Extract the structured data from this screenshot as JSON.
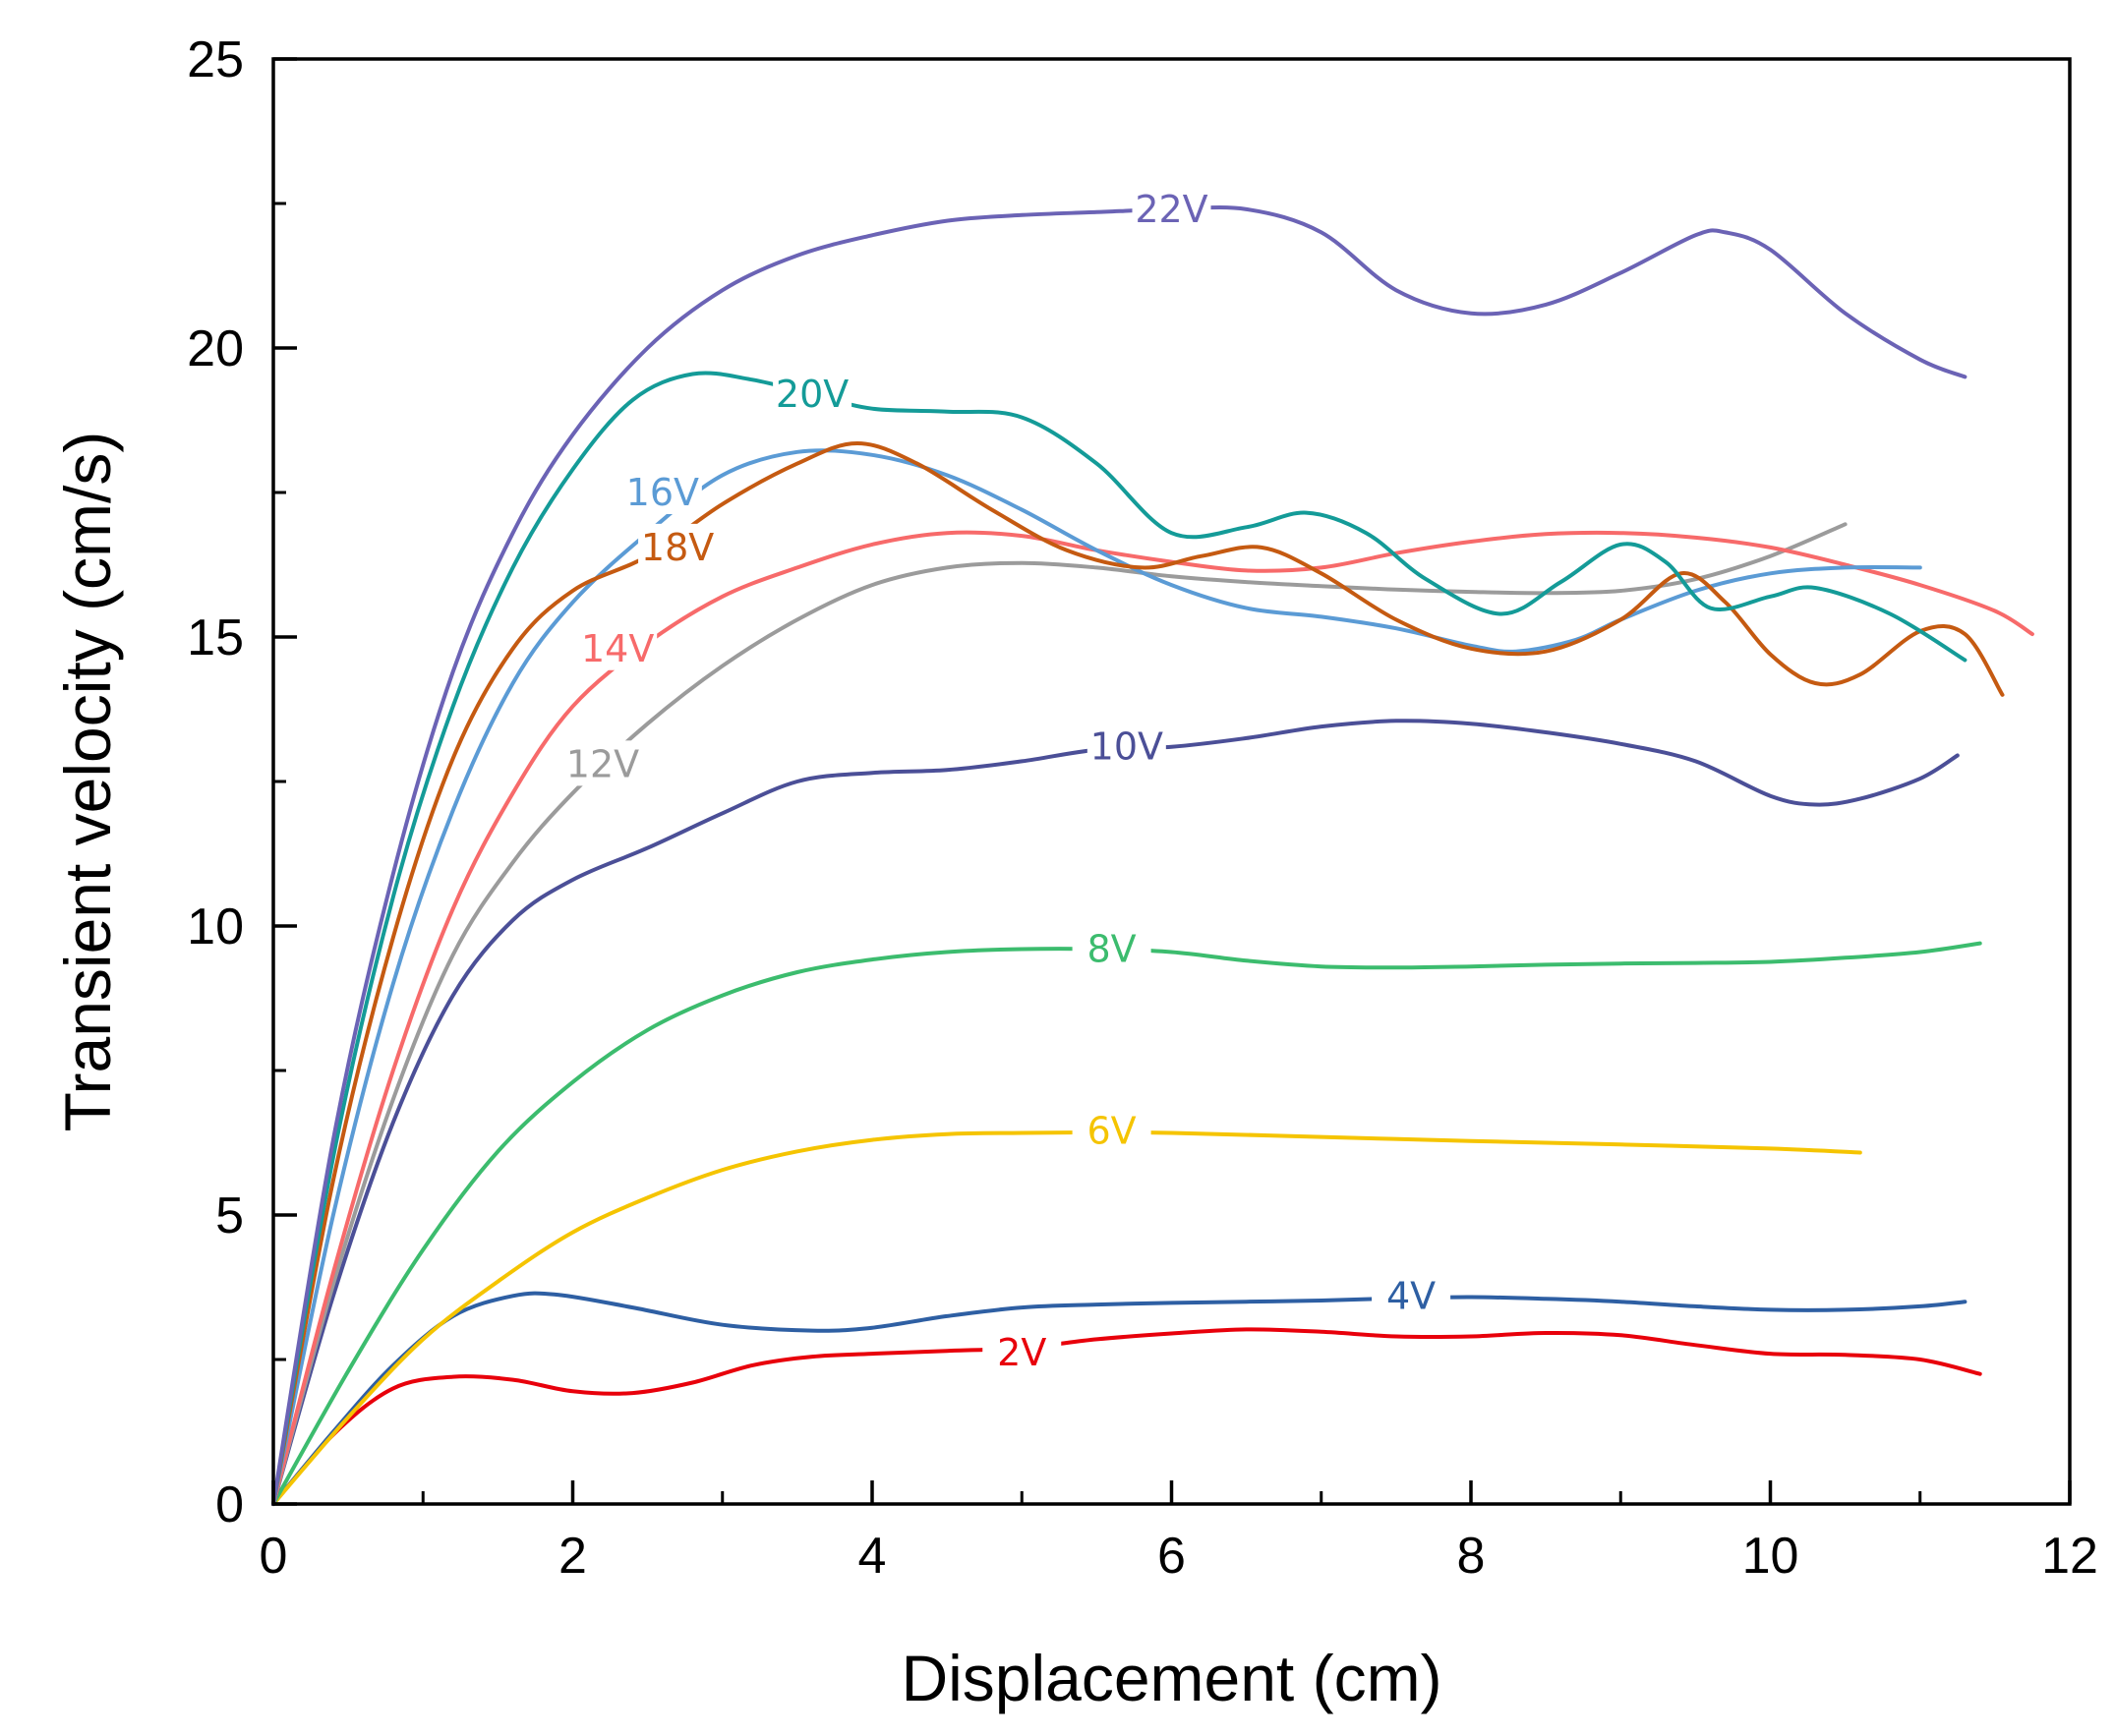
{
  "chart_data": {
    "type": "line",
    "title": "",
    "xlabel": "Displacement (cm)",
    "ylabel": "Transient velocity (cm/s)",
    "xlim": [
      0,
      12
    ],
    "ylim": [
      0,
      25
    ],
    "x_ticks": [
      "0",
      "2",
      "4",
      "6",
      "8",
      "10",
      "12"
    ],
    "y_ticks": [
      "0",
      "5",
      "10",
      "15",
      "20",
      "25"
    ],
    "grid": false,
    "series": [
      {
        "name": "2V",
        "color": "#e8000b",
        "label_at": [
          5.0,
          2.62
        ],
        "points": [
          [
            0,
            0
          ],
          [
            0.4,
            1.2
          ],
          [
            0.8,
            2.0
          ],
          [
            1.2,
            2.2
          ],
          [
            1.6,
            2.15
          ],
          [
            2.0,
            1.95
          ],
          [
            2.4,
            1.92
          ],
          [
            2.8,
            2.1
          ],
          [
            3.2,
            2.4
          ],
          [
            3.6,
            2.55
          ],
          [
            4.0,
            2.6
          ],
          [
            4.5,
            2.65
          ],
          [
            5.0,
            2.7
          ],
          [
            5.5,
            2.85
          ],
          [
            6.0,
            2.95
          ],
          [
            6.5,
            3.02
          ],
          [
            7.0,
            2.98
          ],
          [
            7.5,
            2.9
          ],
          [
            8.0,
            2.9
          ],
          [
            8.5,
            2.96
          ],
          [
            9.0,
            2.92
          ],
          [
            9.5,
            2.75
          ],
          [
            10.0,
            2.6
          ],
          [
            10.5,
            2.58
          ],
          [
            11.0,
            2.5
          ],
          [
            11.4,
            2.25
          ]
        ]
      },
      {
        "name": "4V",
        "color": "#2e5fa3",
        "label_at": [
          7.6,
          3.6
        ],
        "points": [
          [
            0,
            0
          ],
          [
            0.4,
            1.25
          ],
          [
            0.8,
            2.4
          ],
          [
            1.2,
            3.25
          ],
          [
            1.6,
            3.6
          ],
          [
            1.9,
            3.62
          ],
          [
            2.4,
            3.4
          ],
          [
            3.0,
            3.1
          ],
          [
            3.6,
            3.0
          ],
          [
            4.0,
            3.05
          ],
          [
            4.5,
            3.25
          ],
          [
            5.0,
            3.4
          ],
          [
            5.5,
            3.45
          ],
          [
            6.0,
            3.48
          ],
          [
            6.5,
            3.5
          ],
          [
            7.0,
            3.52
          ],
          [
            7.5,
            3.56
          ],
          [
            8.0,
            3.58
          ],
          [
            8.5,
            3.55
          ],
          [
            9.0,
            3.5
          ],
          [
            9.5,
            3.42
          ],
          [
            10.0,
            3.36
          ],
          [
            10.5,
            3.36
          ],
          [
            11.0,
            3.42
          ],
          [
            11.3,
            3.5
          ]
        ]
      },
      {
        "name": "6V",
        "color": "#f5c400",
        "label_at": [
          5.6,
          6.45
        ],
        "points": [
          [
            0,
            0
          ],
          [
            0.5,
            1.5
          ],
          [
            1.0,
            2.85
          ],
          [
            1.5,
            3.85
          ],
          [
            2.0,
            4.7
          ],
          [
            2.5,
            5.3
          ],
          [
            3.0,
            5.78
          ],
          [
            3.5,
            6.1
          ],
          [
            4.0,
            6.3
          ],
          [
            4.5,
            6.4
          ],
          [
            5.0,
            6.42
          ],
          [
            5.5,
            6.43
          ],
          [
            6.0,
            6.42
          ],
          [
            7.0,
            6.35
          ],
          [
            8.0,
            6.28
          ],
          [
            9.0,
            6.22
          ],
          [
            10.0,
            6.15
          ],
          [
            10.6,
            6.08
          ]
        ]
      },
      {
        "name": "8V",
        "color": "#3cbc6e",
        "label_at": [
          5.6,
          9.6
        ],
        "points": [
          [
            0,
            0
          ],
          [
            0.5,
            2.3
          ],
          [
            1.0,
            4.4
          ],
          [
            1.5,
            6.1
          ],
          [
            2.0,
            7.3
          ],
          [
            2.5,
            8.2
          ],
          [
            3.0,
            8.8
          ],
          [
            3.5,
            9.2
          ],
          [
            4.0,
            9.42
          ],
          [
            4.5,
            9.55
          ],
          [
            5.0,
            9.6
          ],
          [
            5.5,
            9.6
          ],
          [
            6.0,
            9.55
          ],
          [
            6.5,
            9.4
          ],
          [
            7.0,
            9.3
          ],
          [
            7.5,
            9.28
          ],
          [
            8.0,
            9.3
          ],
          [
            8.5,
            9.33
          ],
          [
            9.0,
            9.35
          ],
          [
            9.5,
            9.36
          ],
          [
            10.0,
            9.38
          ],
          [
            10.5,
            9.45
          ],
          [
            11.0,
            9.55
          ],
          [
            11.4,
            9.7
          ]
        ]
      },
      {
        "name": "10V",
        "color": "#4b4f97",
        "label_at": [
          5.7,
          13.1
        ],
        "points": [
          [
            0,
            0
          ],
          [
            0.4,
            3.6
          ],
          [
            0.8,
            6.6
          ],
          [
            1.2,
            8.8
          ],
          [
            1.6,
            10.1
          ],
          [
            2.0,
            10.8
          ],
          [
            2.5,
            11.35
          ],
          [
            3.0,
            11.95
          ],
          [
            3.5,
            12.5
          ],
          [
            4.0,
            12.65
          ],
          [
            4.5,
            12.7
          ],
          [
            5.0,
            12.85
          ],
          [
            5.5,
            13.05
          ],
          [
            6.0,
            13.1
          ],
          [
            6.5,
            13.25
          ],
          [
            7.0,
            13.45
          ],
          [
            7.5,
            13.55
          ],
          [
            8.0,
            13.5
          ],
          [
            8.5,
            13.35
          ],
          [
            9.0,
            13.15
          ],
          [
            9.5,
            12.85
          ],
          [
            10.0,
            12.25
          ],
          [
            10.3,
            12.1
          ],
          [
            10.6,
            12.2
          ],
          [
            11.0,
            12.55
          ],
          [
            11.25,
            12.95
          ]
        ]
      },
      {
        "name": "12V",
        "color": "#9b9b9b",
        "label_at": [
          2.2,
          12.8
        ],
        "points": [
          [
            0,
            0
          ],
          [
            0.4,
            3.8
          ],
          [
            0.8,
            7.0
          ],
          [
            1.2,
            9.5
          ],
          [
            1.6,
            11.1
          ],
          [
            2.0,
            12.3
          ],
          [
            2.5,
            13.5
          ],
          [
            3.0,
            14.5
          ],
          [
            3.5,
            15.3
          ],
          [
            4.0,
            15.9
          ],
          [
            4.5,
            16.2
          ],
          [
            5.0,
            16.28
          ],
          [
            5.5,
            16.2
          ],
          [
            6.0,
            16.05
          ],
          [
            6.5,
            15.95
          ],
          [
            7.0,
            15.88
          ],
          [
            7.5,
            15.82
          ],
          [
            8.0,
            15.78
          ],
          [
            8.5,
            15.76
          ],
          [
            9.0,
            15.8
          ],
          [
            9.5,
            16.0
          ],
          [
            10.0,
            16.4
          ],
          [
            10.5,
            16.95
          ]
        ]
      },
      {
        "name": "14V",
        "color": "#f76a6a",
        "label_at": [
          2.3,
          14.8
        ],
        "points": [
          [
            0,
            0
          ],
          [
            0.4,
            4.0
          ],
          [
            0.8,
            7.5
          ],
          [
            1.2,
            10.3
          ],
          [
            1.6,
            12.3
          ],
          [
            2.0,
            13.8
          ],
          [
            2.5,
            14.9
          ],
          [
            3.0,
            15.7
          ],
          [
            3.5,
            16.2
          ],
          [
            4.0,
            16.6
          ],
          [
            4.5,
            16.8
          ],
          [
            5.0,
            16.75
          ],
          [
            5.5,
            16.5
          ],
          [
            6.0,
            16.3
          ],
          [
            6.5,
            16.15
          ],
          [
            7.0,
            16.2
          ],
          [
            7.5,
            16.45
          ],
          [
            8.0,
            16.65
          ],
          [
            8.5,
            16.78
          ],
          [
            9.0,
            16.8
          ],
          [
            9.5,
            16.72
          ],
          [
            10.0,
            16.55
          ],
          [
            10.5,
            16.25
          ],
          [
            11.0,
            15.9
          ],
          [
            11.5,
            15.45
          ],
          [
            11.75,
            15.05
          ]
        ]
      },
      {
        "name": "16V",
        "color": "#5b9bd5",
        "label_at": [
          2.6,
          17.5
        ],
        "points": [
          [
            0,
            0
          ],
          [
            0.4,
            5.0
          ],
          [
            0.8,
            9.0
          ],
          [
            1.2,
            12.0
          ],
          [
            1.6,
            14.2
          ],
          [
            2.0,
            15.6
          ],
          [
            2.5,
            16.8
          ],
          [
            3.0,
            17.8
          ],
          [
            3.5,
            18.2
          ],
          [
            4.0,
            18.15
          ],
          [
            4.5,
            17.8
          ],
          [
            5.0,
            17.2
          ],
          [
            5.5,
            16.5
          ],
          [
            6.0,
            15.9
          ],
          [
            6.5,
            15.5
          ],
          [
            7.0,
            15.35
          ],
          [
            7.5,
            15.15
          ],
          [
            8.0,
            14.85
          ],
          [
            8.3,
            14.75
          ],
          [
            8.7,
            14.95
          ],
          [
            9.0,
            15.3
          ],
          [
            9.5,
            15.8
          ],
          [
            10.0,
            16.1
          ],
          [
            10.5,
            16.2
          ],
          [
            11.0,
            16.2
          ]
        ]
      },
      {
        "name": "18V",
        "color": "#c55a11",
        "label_at": [
          2.7,
          16.55
        ],
        "points": [
          [
            0,
            0
          ],
          [
            0.4,
            5.6
          ],
          [
            0.8,
            9.8
          ],
          [
            1.2,
            12.9
          ],
          [
            1.6,
            14.8
          ],
          [
            2.0,
            15.8
          ],
          [
            2.5,
            16.4
          ],
          [
            3.0,
            17.3
          ],
          [
            3.5,
            18.0
          ],
          [
            3.9,
            18.35
          ],
          [
            4.3,
            18.0
          ],
          [
            4.8,
            17.2
          ],
          [
            5.3,
            16.5
          ],
          [
            5.8,
            16.2
          ],
          [
            6.2,
            16.4
          ],
          [
            6.6,
            16.55
          ],
          [
            7.0,
            16.1
          ],
          [
            7.5,
            15.3
          ],
          [
            8.0,
            14.8
          ],
          [
            8.5,
            14.75
          ],
          [
            9.0,
            15.3
          ],
          [
            9.4,
            16.1
          ],
          [
            9.7,
            15.6
          ],
          [
            10.0,
            14.7
          ],
          [
            10.3,
            14.2
          ],
          [
            10.6,
            14.35
          ],
          [
            11.0,
            15.1
          ],
          [
            11.3,
            15.05
          ],
          [
            11.55,
            14.0
          ]
        ]
      },
      {
        "name": "20V",
        "color": "#149b98",
        "label_at": [
          3.6,
          19.2
        ],
        "points": [
          [
            0,
            0
          ],
          [
            0.4,
            6.0
          ],
          [
            0.8,
            10.5
          ],
          [
            1.2,
            13.8
          ],
          [
            1.6,
            16.2
          ],
          [
            2.0,
            17.9
          ],
          [
            2.4,
            19.1
          ],
          [
            2.8,
            19.55
          ],
          [
            3.2,
            19.45
          ],
          [
            3.6,
            19.2
          ],
          [
            4.0,
            18.95
          ],
          [
            4.5,
            18.9
          ],
          [
            5.0,
            18.8
          ],
          [
            5.5,
            18.0
          ],
          [
            6.0,
            16.8
          ],
          [
            6.5,
            16.9
          ],
          [
            6.9,
            17.15
          ],
          [
            7.3,
            16.8
          ],
          [
            7.7,
            16.0
          ],
          [
            8.2,
            15.4
          ],
          [
            8.6,
            15.95
          ],
          [
            9.0,
            16.6
          ],
          [
            9.3,
            16.3
          ],
          [
            9.6,
            15.5
          ],
          [
            10.0,
            15.7
          ],
          [
            10.3,
            15.85
          ],
          [
            10.8,
            15.4
          ],
          [
            11.3,
            14.6
          ]
        ]
      },
      {
        "name": "22V",
        "color": "#6b63b5",
        "label_at": [
          6.0,
          22.4
        ],
        "points": [
          [
            0,
            0
          ],
          [
            0.4,
            6.3
          ],
          [
            0.8,
            10.9
          ],
          [
            1.2,
            14.4
          ],
          [
            1.6,
            16.8
          ],
          [
            2.0,
            18.5
          ],
          [
            2.5,
            20.0
          ],
          [
            3.0,
            21.0
          ],
          [
            3.5,
            21.6
          ],
          [
            4.0,
            21.95
          ],
          [
            4.5,
            22.2
          ],
          [
            5.0,
            22.3
          ],
          [
            5.5,
            22.35
          ],
          [
            6.0,
            22.4
          ],
          [
            6.5,
            22.4
          ],
          [
            7.0,
            22.0
          ],
          [
            7.5,
            21.0
          ],
          [
            8.0,
            20.6
          ],
          [
            8.5,
            20.75
          ],
          [
            9.0,
            21.3
          ],
          [
            9.5,
            21.95
          ],
          [
            9.7,
            22.0
          ],
          [
            10.0,
            21.7
          ],
          [
            10.5,
            20.6
          ],
          [
            11.0,
            19.8
          ],
          [
            11.3,
            19.5
          ]
        ]
      }
    ]
  }
}
